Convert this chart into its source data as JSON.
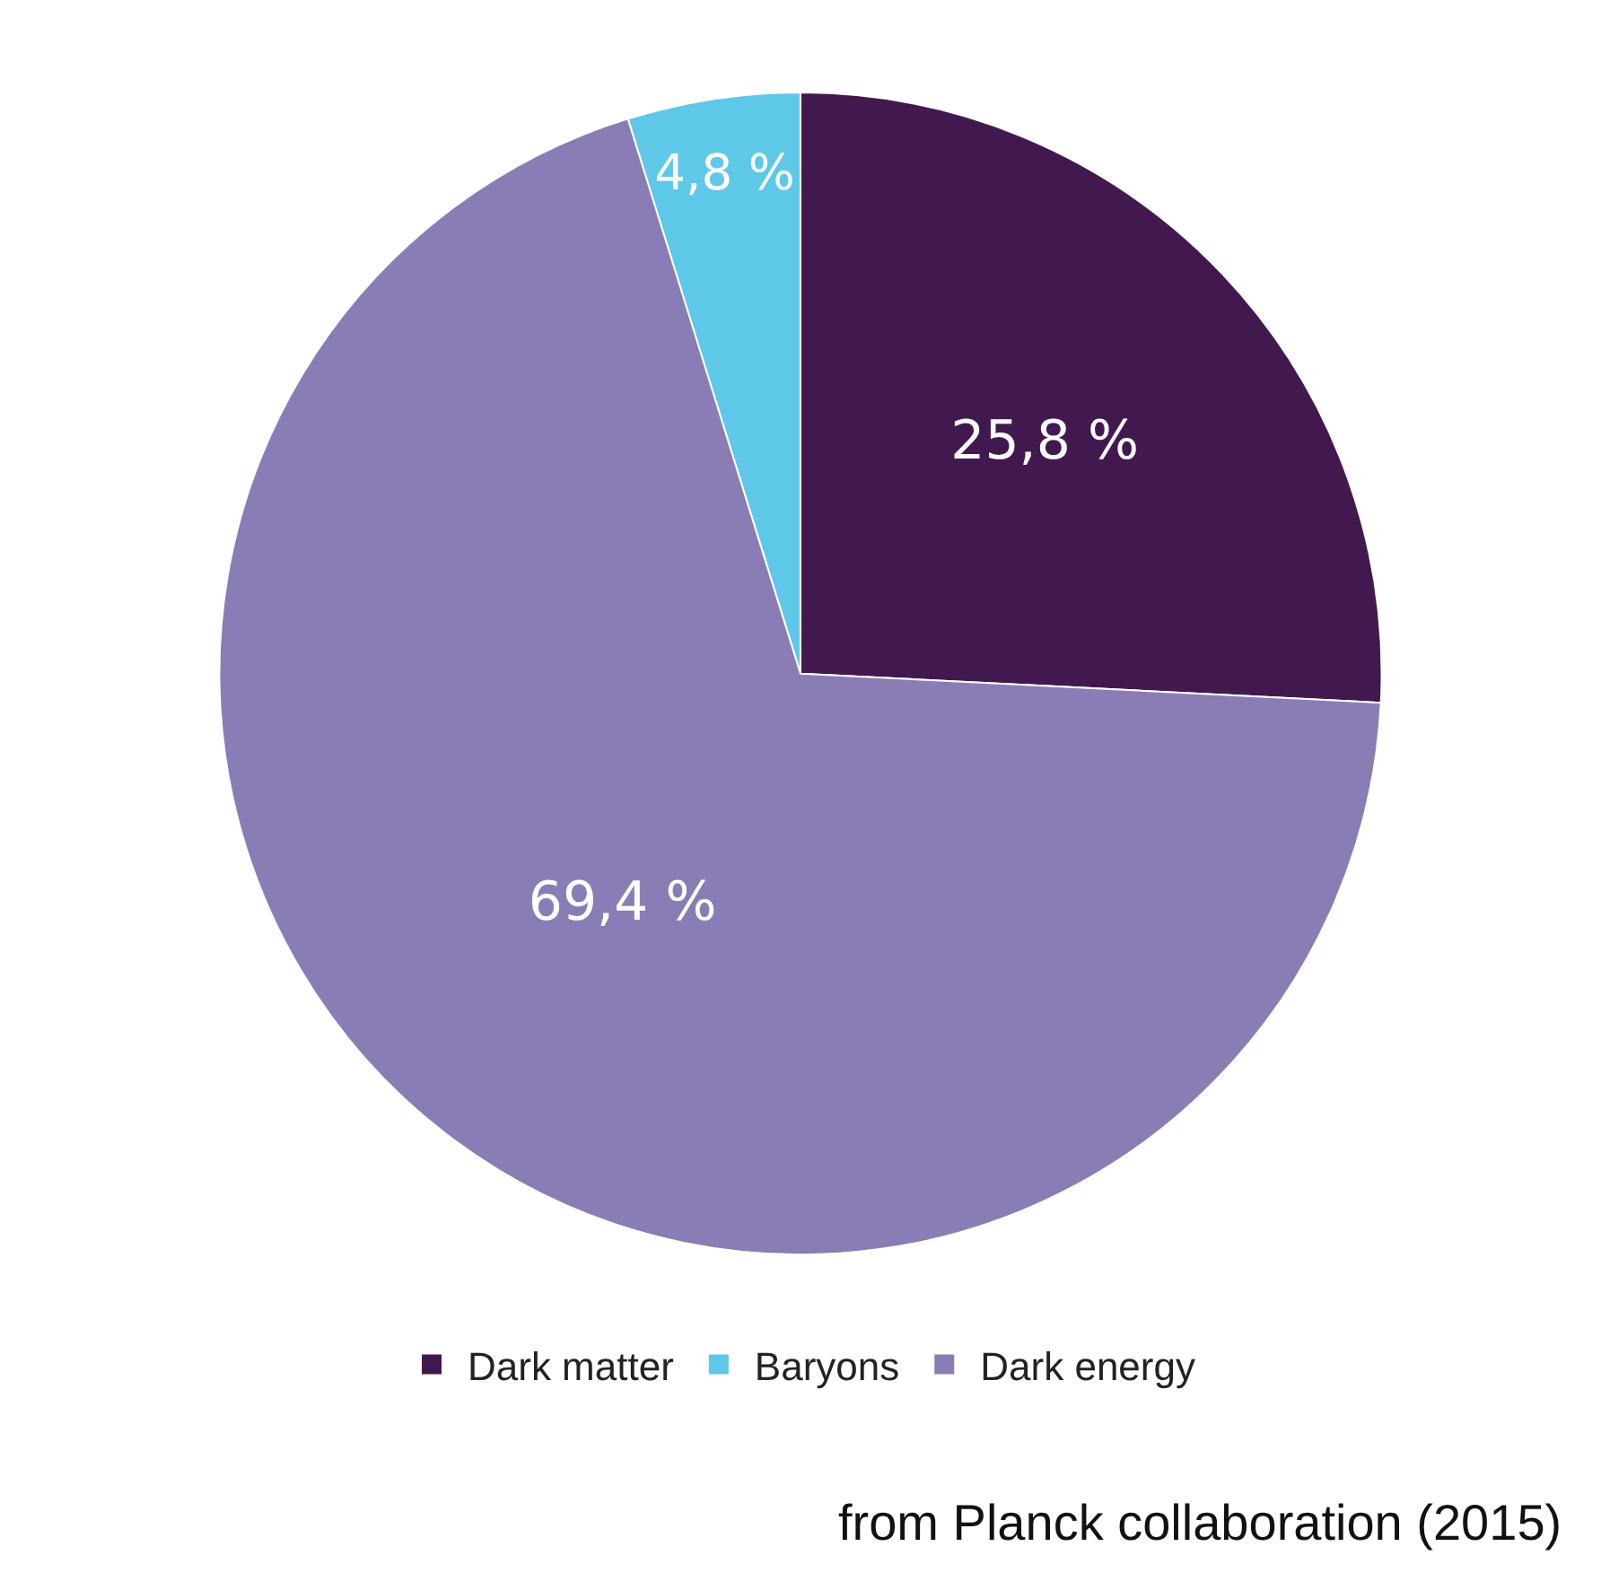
{
  "chart_data": {
    "type": "pie",
    "categories": [
      "Dark matter",
      "Baryons",
      "Dark energy"
    ],
    "values": [
      25.8,
      4.8,
      69.4
    ],
    "value_labels": [
      "25,8 %",
      "4,8 %",
      "69,4 %"
    ],
    "colors": [
      "#42194f",
      "#5ec8e8",
      "#8a7db5"
    ],
    "legend": "bottom",
    "annotations": [
      "from Planck collaboration (2015)"
    ]
  }
}
